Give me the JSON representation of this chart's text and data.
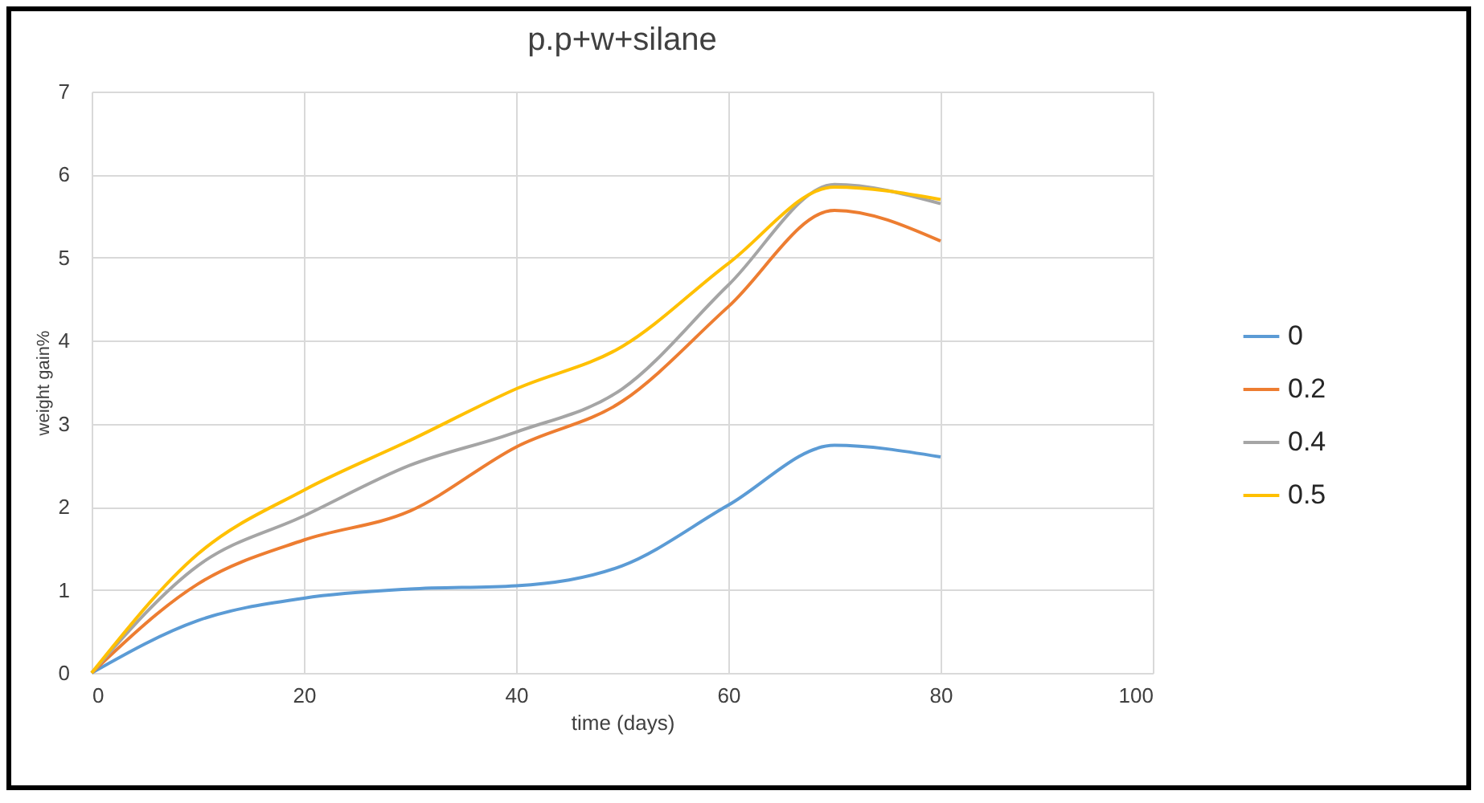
{
  "chart_data": {
    "type": "line",
    "title": "p.p+w+silane",
    "xlabel": "time (days)",
    "ylabel": "weight gain%",
    "x": [
      0,
      10,
      20,
      30,
      40,
      50,
      60,
      70,
      80
    ],
    "series": [
      {
        "name": "0",
        "color": "#5b9bd5",
        "values": [
          0,
          0.63,
          0.9,
          1.01,
          1.05,
          1.29,
          2.02,
          2.74,
          2.6
        ]
      },
      {
        "name": "0.2",
        "color": "#ed7d31",
        "values": [
          0,
          1.07,
          1.6,
          1.95,
          2.72,
          3.27,
          4.41,
          5.57,
          5.2
        ]
      },
      {
        "name": "0.4",
        "color": "#a5a5a5",
        "values": [
          0,
          1.29,
          1.89,
          2.5,
          2.9,
          3.42,
          4.67,
          5.88,
          5.65
        ]
      },
      {
        "name": "0.5",
        "color": "#ffc000",
        "values": [
          0,
          1.43,
          2.2,
          2.8,
          3.42,
          3.93,
          4.93,
          5.85,
          5.7
        ]
      }
    ],
    "xlim": [
      0,
      100
    ],
    "xticks": [
      0,
      20,
      40,
      60,
      80,
      100
    ],
    "ylim": [
      0,
      7
    ],
    "yticks": [
      0,
      1,
      2,
      3,
      4,
      5,
      6,
      7
    ],
    "grid": true,
    "legend": "right",
    "marker": "none",
    "line_style": "solid"
  }
}
